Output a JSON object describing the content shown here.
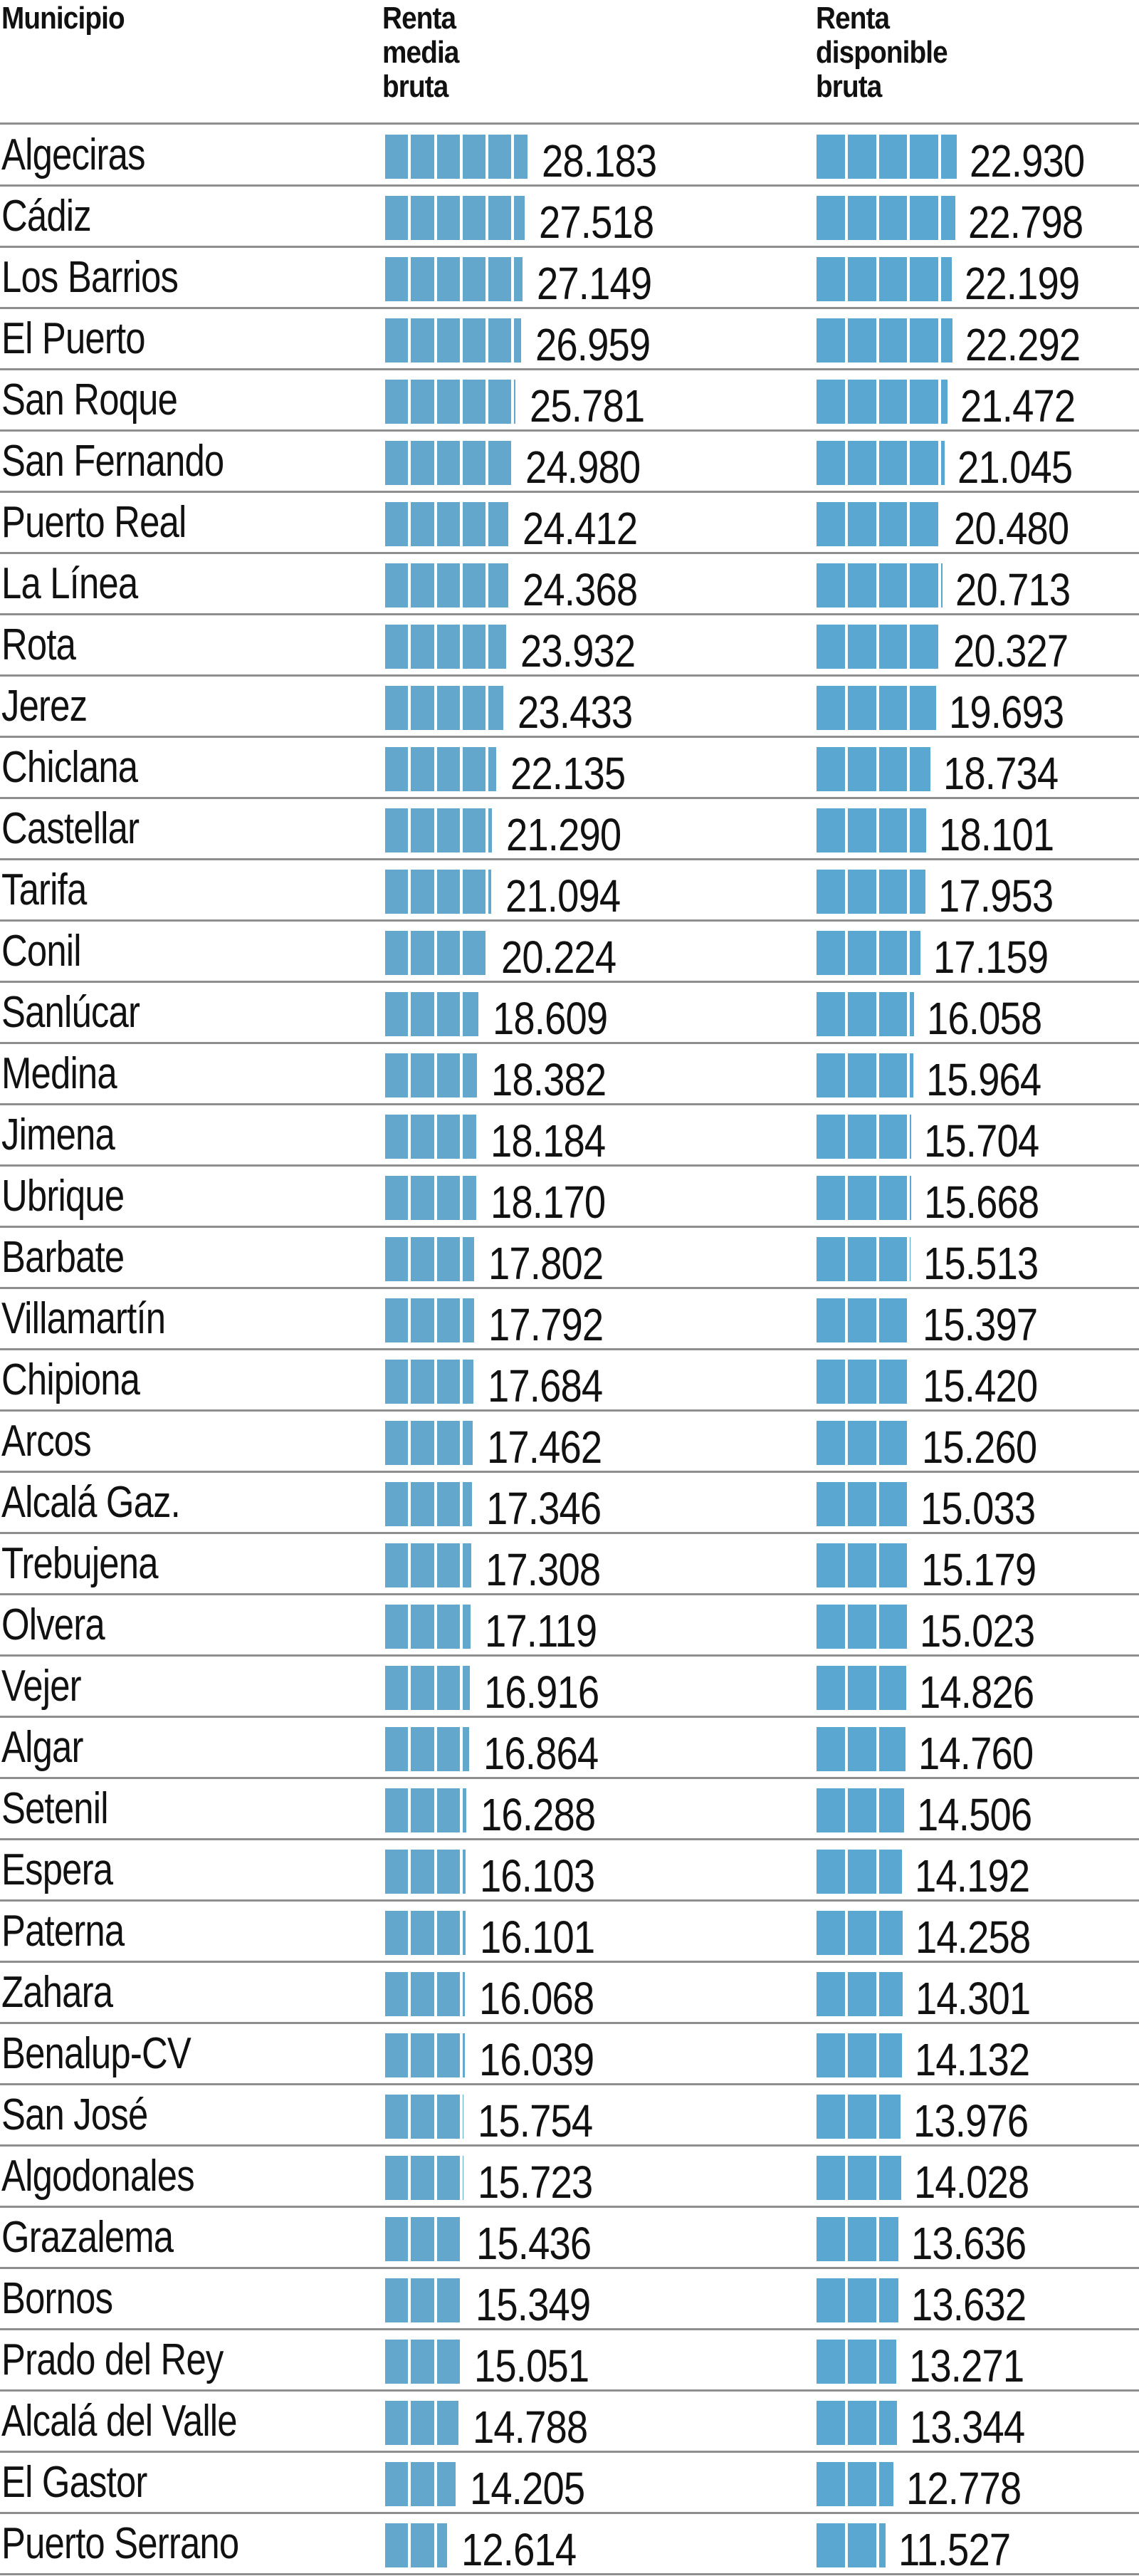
{
  "header": {
    "col_municipio": "Municipio",
    "col_renta_media": "Renta\nmedia\nbruta",
    "col_renta_disponible": "Renta\ndisponible\nbruta"
  },
  "colors": {
    "bar_media": "#64a7cc",
    "bar_disponible": "#5aa8d2",
    "rule": "#8e8e8e"
  },
  "rows": [
    {
      "municipio": "Algeciras",
      "media": "28.183",
      "disponible": "22.930"
    },
    {
      "municipio": "Cádiz",
      "media": "27.518",
      "disponible": "22.798"
    },
    {
      "municipio": "Los Barrios",
      "media": "27.149",
      "disponible": "22.199"
    },
    {
      "municipio": "El Puerto",
      "media": "26.959",
      "disponible": "22.292"
    },
    {
      "municipio": "San Roque",
      "media": "25.781",
      "disponible": "21.472"
    },
    {
      "municipio": "San Fernando",
      "media": "24.980",
      "disponible": "21.045"
    },
    {
      "municipio": "Puerto Real",
      "media": "24.412",
      "disponible": "20.480"
    },
    {
      "municipio": "La Línea",
      "media": "24.368",
      "disponible": "20.713"
    },
    {
      "municipio": "Rota",
      "media": "23.932",
      "disponible": "20.327"
    },
    {
      "municipio": "Jerez",
      "media": "23.433",
      "disponible": "19.693"
    },
    {
      "municipio": "Chiclana",
      "media": "22.135",
      "disponible": "18.734"
    },
    {
      "municipio": "Castellar",
      "media": "21.290",
      "disponible": "18.101"
    },
    {
      "municipio": "Tarifa",
      "media": "21.094",
      "disponible": "17.953"
    },
    {
      "municipio": "Conil",
      "media": "20.224",
      "disponible": "17.159"
    },
    {
      "municipio": "Sanlúcar",
      "media": "18.609",
      "disponible": "16.058"
    },
    {
      "municipio": "Medina",
      "media": "18.382",
      "disponible": "15.964"
    },
    {
      "municipio": "Jimena",
      "media": "18.184",
      "disponible": "15.704"
    },
    {
      "municipio": "Ubrique",
      "media": "18.170",
      "disponible": "15.668"
    },
    {
      "municipio": "Barbate",
      "media": "17.802",
      "disponible": "15.513"
    },
    {
      "municipio": "Villamartín",
      "media": "17.792",
      "disponible": "15.397"
    },
    {
      "municipio": "Chipiona",
      "media": "17.684",
      "disponible": "15.420"
    },
    {
      "municipio": "Arcos",
      "media": "17.462",
      "disponible": "15.260"
    },
    {
      "municipio": "Alcalá Gaz.",
      "media": "17.346",
      "disponible": "15.033"
    },
    {
      "municipio": "Trebujena",
      "media": "17.308",
      "disponible": "15.179"
    },
    {
      "municipio": "Olvera",
      "media": "17.119",
      "disponible": "15.023"
    },
    {
      "municipio": "Vejer",
      "media": "16.916",
      "disponible": "14.826"
    },
    {
      "municipio": "Algar",
      "media": "16.864",
      "disponible": "14.760"
    },
    {
      "municipio": "Setenil",
      "media": "16.288",
      "disponible": "14.506"
    },
    {
      "municipio": "Espera",
      "media": "16.103",
      "disponible": "14.192"
    },
    {
      "municipio": "Paterna",
      "media": "16.101",
      "disponible": "14.258"
    },
    {
      "municipio": "Zahara",
      "media": "16.068",
      "disponible": "14.301"
    },
    {
      "municipio": "Benalup-CV",
      "media": "16.039",
      "disponible": "14.132"
    },
    {
      "municipio": "San José",
      "media": "15.754",
      "disponible": "13.976"
    },
    {
      "municipio": "Algodonales",
      "media": "15.723",
      "disponible": "14.028"
    },
    {
      "municipio": "Grazalema",
      "media": "15.436",
      "disponible": "13.636"
    },
    {
      "municipio": "Bornos",
      "media": "15.349",
      "disponible": "13.632"
    },
    {
      "municipio": "Prado del Rey",
      "media": "15.051",
      "disponible": "13.271"
    },
    {
      "municipio": "Alcalá del Valle",
      "media": "14.788",
      "disponible": "13.344"
    },
    {
      "municipio": "El Gastor",
      "media": "14.205",
      "disponible": "12.778"
    },
    {
      "municipio": "Puerto Serrano",
      "media": "12.614",
      "disponible": "11.527"
    }
  ],
  "chart_data": {
    "type": "bar",
    "orientation": "horizontal",
    "title": "",
    "xlabel": "",
    "ylabel": "Municipio",
    "grid": false,
    "legend": "column headers",
    "categories": [
      "Algeciras",
      "Cádiz",
      "Los Barrios",
      "El Puerto",
      "San Roque",
      "San Fernando",
      "Puerto Real",
      "La Línea",
      "Rota",
      "Jerez",
      "Chiclana",
      "Castellar",
      "Tarifa",
      "Conil",
      "Sanlúcar",
      "Medina",
      "Jimena",
      "Ubrique",
      "Barbate",
      "Villamartín",
      "Chipiona",
      "Arcos",
      "Alcalá Gaz.",
      "Trebujena",
      "Olvera",
      "Vejer",
      "Algar",
      "Setenil",
      "Espera",
      "Paterna",
      "Zahara",
      "Benalup-CV",
      "San José",
      "Algodonales",
      "Grazalema",
      "Bornos",
      "Prado del Rey",
      "Alcalá del Valle",
      "El Gastor",
      "Puerto Serrano"
    ],
    "series": [
      {
        "name": "Renta media bruta",
        "values": [
          28183,
          27518,
          27149,
          26959,
          25781,
          24980,
          24412,
          24368,
          23932,
          23433,
          22135,
          21290,
          21094,
          20224,
          18609,
          18382,
          18184,
          18170,
          17802,
          17792,
          17684,
          17462,
          17346,
          17308,
          17119,
          16916,
          16864,
          16288,
          16103,
          16101,
          16068,
          16039,
          15754,
          15723,
          15436,
          15349,
          15051,
          14788,
          14205,
          12614
        ]
      },
      {
        "name": "Renta disponible bruta",
        "values": [
          22930,
          22798,
          22199,
          22292,
          21472,
          21045,
          20480,
          20713,
          20327,
          19693,
          18734,
          18101,
          17953,
          17159,
          16058,
          15964,
          15704,
          15668,
          15513,
          15397,
          15420,
          15260,
          15033,
          15179,
          15023,
          14826,
          14760,
          14506,
          14192,
          14258,
          14301,
          14132,
          13976,
          14028,
          13636,
          13632,
          13271,
          13344,
          12778,
          11527
        ]
      }
    ],
    "segment_unit": 5000
  }
}
